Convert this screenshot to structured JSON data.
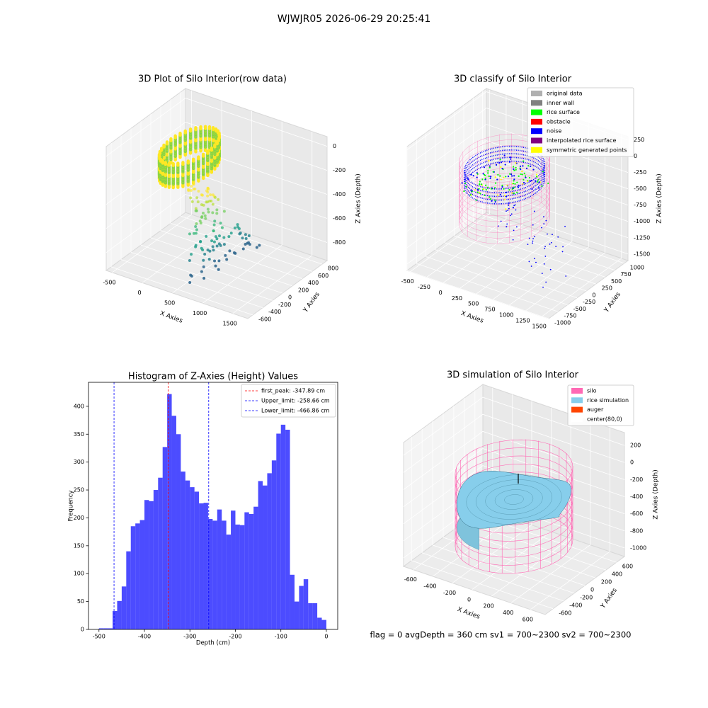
{
  "title": "WJWJR05 2026-06-29 20:25:41",
  "footer": "flag = 0     avgDepth = 360 cm  sv1 = 700~2300  sv2 = 700~2300",
  "chart_data": [
    {
      "type": "scatter3d",
      "title": "3D Plot of Silo Interior(row data)",
      "xlabel": "X Axies",
      "ylabel": "Y Axies",
      "zlabel": "Z Axies (Depth)",
      "xlim": [
        -600,
        1750
      ],
      "ylim": [
        -700,
        900
      ],
      "zlim": [
        -950,
        80
      ],
      "xticks": [
        -500,
        0,
        500,
        1000,
        1500
      ],
      "yticks": [
        -600,
        -400,
        -200,
        0,
        200,
        400,
        600,
        800
      ],
      "zticks": [
        -800,
        -600,
        -400,
        -200,
        0
      ]
    },
    {
      "type": "classify3d",
      "title": "3D classify of Silo Interior",
      "xlabel": "X Axies",
      "ylabel": "Y Axies",
      "zlabel": "Z Axies (Depth)",
      "xlim": [
        -550,
        1600
      ],
      "ylim": [
        -1000,
        1100
      ],
      "zlim": [
        -1600,
        300
      ],
      "xticks": [
        -500,
        -250,
        0,
        250,
        500,
        750,
        1000,
        1250,
        1500
      ],
      "yticks": [
        -1000,
        -750,
        -500,
        -250,
        0,
        250,
        500,
        750,
        1000
      ],
      "zticks": [
        -1500,
        -1250,
        -1000,
        -750,
        -500,
        -250,
        0,
        250
      ],
      "legend": [
        {
          "name": "original data",
          "color": "#b0b0b0"
        },
        {
          "name": "inner wall",
          "color": "#808080"
        },
        {
          "name": "rice surface",
          "color": "#00ff00"
        },
        {
          "name": "obstacle",
          "color": "#ff0000"
        },
        {
          "name": "noise",
          "color": "#0000ff"
        },
        {
          "name": "interpolated rice surface",
          "color": "#800080"
        },
        {
          "name": "symmetric generated points",
          "color": "#ffff00"
        }
      ]
    },
    {
      "type": "histogram",
      "title": "Histogram of Z-Axies (Height) Values",
      "xlabel": "Depth (cm)",
      "ylabel": "Frequency",
      "color": "#0000ff",
      "bins": [
        -500,
        -490,
        -480,
        -470,
        -460,
        -450,
        -440,
        -430,
        -420,
        -410,
        -400,
        -390,
        -380,
        -370,
        -360,
        -350,
        -340,
        -330,
        -320,
        -310,
        -300,
        -290,
        -280,
        -270,
        -260,
        -250,
        -240,
        -230,
        -220,
        -210,
        -200,
        -190,
        -180,
        -170,
        -160,
        -150,
        -140,
        -130,
        -120,
        -110,
        -100,
        -90,
        -80,
        -70,
        -60,
        -50,
        -40,
        -30,
        -20,
        -10,
        0
      ],
      "values": [
        2,
        2,
        2,
        33,
        51,
        77,
        140,
        185,
        190,
        196,
        232,
        230,
        250,
        272,
        327,
        422,
        383,
        350,
        283,
        267,
        255,
        247,
        226,
        227,
        198,
        195,
        215,
        195,
        170,
        213,
        188,
        187,
        210,
        207,
        220,
        266,
        258,
        280,
        303,
        351,
        367,
        358,
        98,
        50,
        78,
        90,
        47,
        47,
        21,
        17
      ],
      "xlim": [
        -523,
        25
      ],
      "ylim": [
        0,
        443
      ],
      "xticks": [
        -500,
        -400,
        -300,
        -200,
        -100,
        0
      ],
      "yticks": [
        0,
        50,
        100,
        150,
        200,
        250,
        300,
        350,
        400
      ],
      "legend_position": "upper right",
      "vlines": [
        {
          "name": "first_peak: -347.89 cm",
          "value": -347.89,
          "color": "#ff0000"
        },
        {
          "name": "Upper_limit: -258.66 cm",
          "value": -258.66,
          "color": "#0000ff"
        },
        {
          "name": "Lower_limit: -466.86 cm",
          "value": -466.86,
          "color": "#0000ff"
        }
      ]
    },
    {
      "type": "surface3d",
      "title": "3D simulation of Silo Interior",
      "xlabel": "X Axies",
      "ylabel": "Y Axies",
      "zlabel": "Z Axies (Depth)",
      "xlim": [
        -700,
        750
      ],
      "ylim": [
        -750,
        750
      ],
      "zlim": [
        -1100,
        350
      ],
      "xticks": [
        -600,
        -400,
        -200,
        0,
        200,
        400,
        600
      ],
      "yticks": [
        -600,
        -400,
        -200,
        0,
        200,
        400,
        600
      ],
      "zticks": [
        -1000,
        -800,
        -600,
        -400,
        -200,
        0,
        200
      ],
      "legend": [
        {
          "name": "silo",
          "color": "#ff69b4"
        },
        {
          "name": "rice simulation",
          "color": "#87ceeb"
        },
        {
          "name": "auger",
          "color": "#ff4500"
        },
        {
          "name": "center(80,0)",
          "color": "#ffffff"
        }
      ]
    }
  ]
}
